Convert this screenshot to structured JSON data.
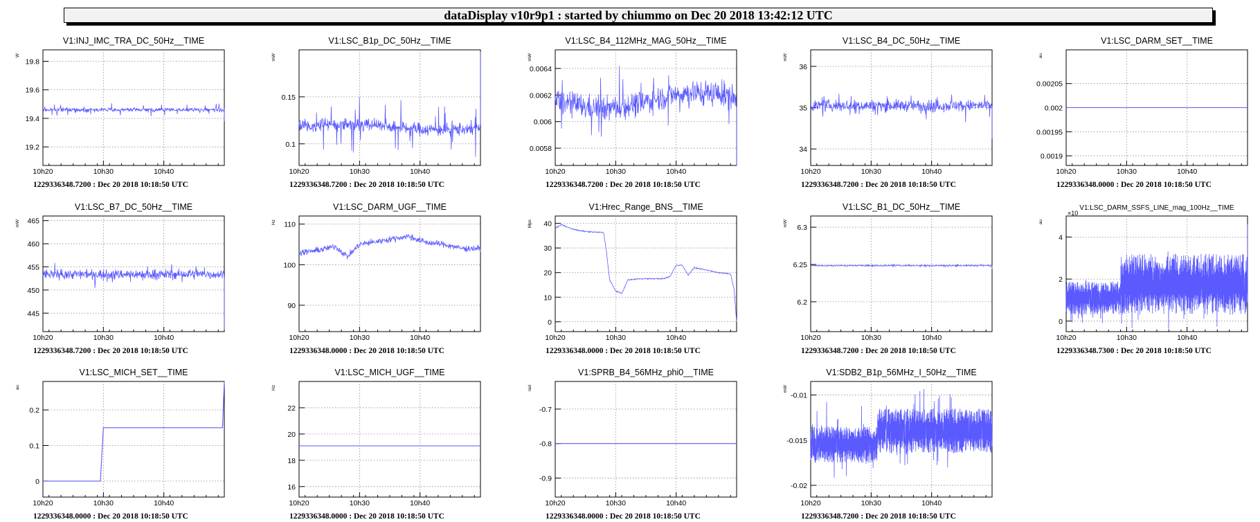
{
  "header": {
    "title": "dataDisplay v10r9p1 : started by chiummo on Dec 20 2018 13:42:12 UTC"
  },
  "colors": {
    "trace": "#5a5aff",
    "grid": "#888888"
  },
  "chart_data": [
    {
      "type": "line",
      "title": "V1:INJ_IMC_TRA_DC_50Hz__TIME",
      "ylabel": "W",
      "xlabel": "1229336348.7200 : Dec 20 2018 10:18:50 UTC",
      "x_ticks": [
        "10h20",
        "10h30",
        "10h40"
      ],
      "y_ticks": [
        "19.2",
        "19.4",
        "19.6",
        "19.8"
      ],
      "xlim": [
        0,
        30
      ],
      "ylim": [
        19.07,
        19.88
      ],
      "trace": {
        "kind": "noise",
        "base": 19.46,
        "amp": 0.012,
        "spikes": 0.045,
        "tail": -0.08
      }
    },
    {
      "type": "line",
      "title": "V1:LSC_B1p_DC_50Hz__TIME",
      "ylabel": "mW",
      "xlabel": "1229336348.7200 : Dec 20 2018 10:18:50 UTC",
      "x_ticks": [
        "10h20",
        "10h30",
        "10h40"
      ],
      "y_ticks": [
        "0.1",
        "0.15"
      ],
      "xlim": [
        0,
        30
      ],
      "ylim": [
        0.077,
        0.2
      ],
      "trace": {
        "kind": "noise",
        "base": 0.118,
        "amp": 0.006,
        "spikes": 0.03,
        "drift": 0.003,
        "tail": 0.08
      }
    },
    {
      "type": "line",
      "title": "V1:LSC_B4_112MHz_MAG_50Hz__TIME",
      "ylabel": "mW",
      "xlabel": "1229336348.7200 : Dec 20 2018 10:18:50 UTC",
      "x_ticks": [
        "10h20",
        "10h30",
        "10h40"
      ],
      "y_ticks": [
        "0.0058",
        "0.006",
        "0.0062",
        "0.0064"
      ],
      "xlim": [
        0,
        30
      ],
      "ylim": [
        0.00567,
        0.00654
      ],
      "trace": {
        "kind": "noise",
        "base": 0.00616,
        "amp": 8e-05,
        "spikes": 0.00025,
        "drift": -6e-05,
        "tail": -0.0005
      }
    },
    {
      "type": "line",
      "title": "V1:LSC_B4_DC_50Hz__TIME",
      "ylabel": "mW",
      "xlabel": "1229336348.7200 : Dec 20 2018 10:18:50 UTC",
      "x_ticks": [
        "10h20",
        "10h30",
        "10h40"
      ],
      "y_ticks": [
        "34",
        "35",
        "36"
      ],
      "xlim": [
        0,
        30
      ],
      "ylim": [
        33.6,
        36.4
      ],
      "trace": {
        "kind": "noise",
        "base": 35.05,
        "amp": 0.12,
        "spikes": 0.3,
        "tail": -0.8
      }
    },
    {
      "type": "line",
      "title": "V1:LSC_DARM_SET__TIME",
      "ylabel": "au",
      "xlabel": "1229336348.0000 : Dec 20 2018 10:18:50 UTC",
      "x_ticks": [
        "10h20",
        "10h30",
        "10h40"
      ],
      "y_ticks": [
        "0.0019",
        "0.00195",
        "0.002",
        "0.00205"
      ],
      "xlim": [
        0,
        30
      ],
      "ylim": [
        0.00188,
        0.00212
      ],
      "trace": {
        "kind": "flat",
        "value": 0.002
      }
    },
    {
      "type": "line",
      "title": "V1:LSC_B7_DC_50Hz__TIME",
      "ylabel": "mW",
      "xlabel": "1229336348.7200 : Dec 20 2018 10:18:50 UTC",
      "x_ticks": [
        "10h20",
        "10h30",
        "10h40"
      ],
      "y_ticks": [
        "445",
        "450",
        "455",
        "460",
        "465"
      ],
      "xlim": [
        0,
        30
      ],
      "ylim": [
        441,
        466
      ],
      "trace": {
        "kind": "noise",
        "base": 453.4,
        "amp": 0.9,
        "spikes": 2.5,
        "tail": -12
      }
    },
    {
      "type": "line",
      "title": "V1:LSC_DARM_UGF__TIME",
      "ylabel": "Hz",
      "xlabel": "1229336348.0000 : Dec 20 2018 10:18:50 UTC",
      "x_ticks": [
        "10h20",
        "10h30",
        "10h40"
      ],
      "y_ticks": [
        "90",
        "100",
        "110"
      ],
      "xlim": [
        0,
        30
      ],
      "ylim": [
        83.5,
        112
      ],
      "trace": {
        "kind": "wander",
        "points": [
          [
            0,
            103
          ],
          [
            3,
            103.5
          ],
          [
            6,
            104.5
          ],
          [
            8,
            102
          ],
          [
            10,
            105
          ],
          [
            14,
            106
          ],
          [
            18,
            107
          ],
          [
            21,
            105.5
          ],
          [
            24,
            105
          ],
          [
            27,
            104
          ],
          [
            30,
            104
          ]
        ],
        "amp": 1.3
      }
    },
    {
      "type": "line",
      "title": "V1:Hrec_Range_BNS__TIME",
      "ylabel": "Mpc",
      "xlabel": "1229336348.0000 : Dec 20 2018 10:18:50 UTC",
      "x_ticks": [
        "10h20",
        "10h30",
        "10h40"
      ],
      "y_ticks": [
        "0",
        "10",
        "20",
        "30",
        "40"
      ],
      "xlim": [
        0,
        30
      ],
      "ylim": [
        -4,
        43
      ],
      "trace": {
        "kind": "wander",
        "points": [
          [
            0,
            38
          ],
          [
            1,
            39.5
          ],
          [
            2.5,
            38
          ],
          [
            4,
            37
          ],
          [
            6,
            36.5
          ],
          [
            8,
            36.3
          ],
          [
            8.4,
            30
          ],
          [
            9,
            17
          ],
          [
            10,
            12.5
          ],
          [
            11,
            11.5
          ],
          [
            12,
            17
          ],
          [
            14,
            17.5
          ],
          [
            18,
            17.5
          ],
          [
            19,
            18.5
          ],
          [
            20,
            23
          ],
          [
            21,
            23
          ],
          [
            22,
            19
          ],
          [
            23,
            22
          ],
          [
            25,
            21
          ],
          [
            27,
            20
          ],
          [
            29,
            19.5
          ],
          [
            29.6,
            13
          ],
          [
            30,
            0
          ]
        ],
        "amp": 0.4
      }
    },
    {
      "type": "line",
      "title": "V1:LSC_B1_DC_50Hz__TIME",
      "ylabel": "mW",
      "xlabel": "1229336348.7200 : Dec 20 2018 10:18:50 UTC",
      "x_ticks": [
        "10h20",
        "10h30",
        "10h40"
      ],
      "y_ticks": [
        "6.2",
        "6.25",
        "6.3"
      ],
      "xlim": [
        0,
        30
      ],
      "ylim": [
        6.16,
        6.315
      ],
      "trace": {
        "kind": "noise",
        "base": 6.2485,
        "amp": 0.0008,
        "spikes": 0.002,
        "tail": -0.005
      }
    },
    {
      "type": "line",
      "title": "V1:LSC_DARM_SSFS_LINE_mag_100Hz__TIME",
      "ylabel": "au",
      "y_exponent": "×10",
      "xlabel": "1229336348.7300 : Dec 20 2018 10:18:50 UTC",
      "x_ticks": [
        "10h20",
        "10h30",
        "10h40"
      ],
      "y_ticks": [
        "0",
        "2",
        "4"
      ],
      "xlim": [
        0,
        30
      ],
      "ylim": [
        -0.5,
        5
      ],
      "trace": {
        "kind": "band",
        "segments": [
          [
            0,
            9,
            0.3,
            1.9
          ],
          [
            9,
            30,
            0.3,
            3.2
          ]
        ],
        "spikes": 0.8,
        "tail": 4.6
      }
    },
    {
      "type": "line",
      "title": "V1:LSC_MICH_SET__TIME",
      "ylabel": "au",
      "xlabel": "1229336348.0000 : Dec 20 2018 10:18:50 UTC",
      "x_ticks": [
        "10h20",
        "10h30",
        "10h40"
      ],
      "y_ticks": [
        "0",
        "0.1",
        "0.2"
      ],
      "xlim": [
        0,
        30
      ],
      "ylim": [
        -0.045,
        0.28
      ],
      "trace": {
        "kind": "steps",
        "points": [
          [
            0,
            0
          ],
          [
            9.5,
            0
          ],
          [
            10,
            0.15
          ],
          [
            29.7,
            0.15
          ],
          [
            30,
            0.28
          ]
        ]
      }
    },
    {
      "type": "line",
      "title": "V1:LSC_MICH_UGF__TIME",
      "ylabel": "Hz",
      "xlabel": "1229336348.0000 : Dec 20 2018 10:18:50 UTC",
      "x_ticks": [
        "10h20",
        "10h30",
        "10h40"
      ],
      "y_ticks": [
        "16",
        "18",
        "20",
        "22"
      ],
      "xlim": [
        0,
        30
      ],
      "ylim": [
        15.2,
        24
      ],
      "trace": {
        "kind": "flat",
        "value": 19.1
      }
    },
    {
      "type": "line",
      "title": "V1:SPRB_B4_56MHz_phi0__TIME",
      "ylabel": "rad",
      "xlabel": "1229336348.0000 : Dec 20 2018 10:18:50 UTC",
      "x_ticks": [
        "10h20",
        "10h30",
        "10h40"
      ],
      "y_ticks": [
        "-0.9",
        "-0.8",
        "-0.7"
      ],
      "xlim": [
        0,
        30
      ],
      "ylim": [
        -0.955,
        -0.62
      ],
      "trace": {
        "kind": "flat",
        "value": -0.8
      }
    },
    {
      "type": "line",
      "title": "V1:SDB2_B1p_56MHz_I_50Hz__TIME",
      "ylabel": "mW",
      "xlabel": "1229336348.7200 : Dec 20 2018 10:18:50 UTC",
      "x_ticks": [
        "10h20",
        "10h30",
        "10h40"
      ],
      "y_ticks": [
        "-0.02",
        "-0.015",
        "-0.01"
      ],
      "xlim": [
        0,
        30
      ],
      "ylim": [
        -0.0213,
        -0.0085
      ],
      "trace": {
        "kind": "band",
        "segments": [
          [
            0,
            11,
            -0.0175,
            -0.0135
          ],
          [
            11,
            30,
            -0.0165,
            -0.0115
          ]
        ],
        "spikes": 0.003
      }
    }
  ]
}
